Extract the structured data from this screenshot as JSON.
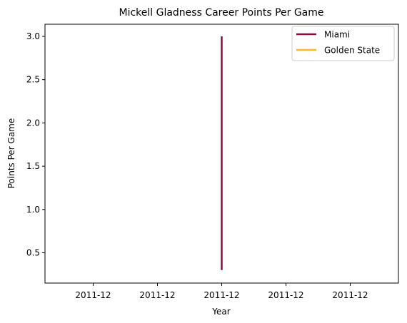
{
  "chart_data": {
    "type": "line",
    "title": "Mickell Gladness Career Points Per Game",
    "xlabel": "Year",
    "ylabel": "Points Per Game",
    "x_tick_labels": [
      "2011-12",
      "2011-12",
      "2011-12",
      "2011-12",
      "2011-12"
    ],
    "y_ticks": [
      0.5,
      1.0,
      1.5,
      2.0,
      2.5,
      3.0
    ],
    "y_tick_labels": [
      "0.5",
      "1.0",
      "1.5",
      "2.0",
      "2.5",
      "3.0"
    ],
    "ylim": [
      0.15,
      3.14
    ],
    "grid": false,
    "legend_position": "top-right",
    "series": [
      {
        "name": "Miami",
        "color": "#8b0a3f",
        "points": [
          {
            "x": "2011-12",
            "y": 3.0
          },
          {
            "x": "2011-12",
            "y": 0.3
          }
        ]
      },
      {
        "name": "Golden State",
        "color": "#fdb927",
        "points": []
      }
    ]
  }
}
